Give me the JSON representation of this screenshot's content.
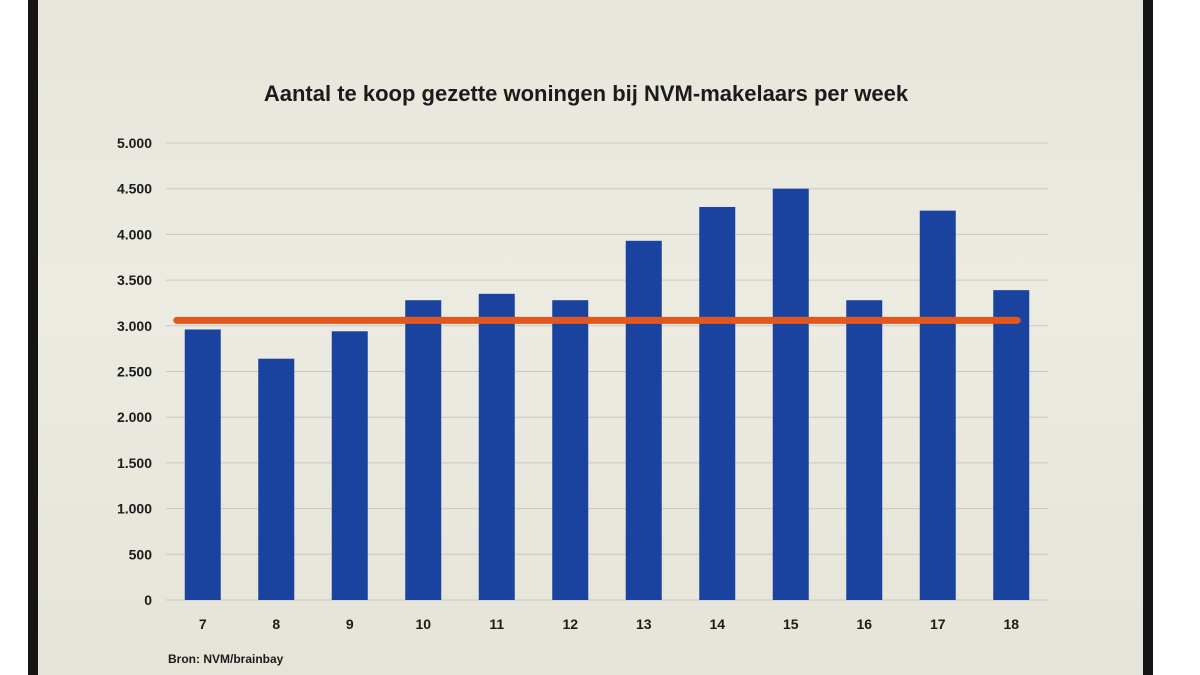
{
  "chart_data": {
    "type": "bar",
    "title": "Aantal te koop gezette woningen bij NVM-makelaars per week",
    "xlabel": "",
    "ylabel": "",
    "categories": [
      "7",
      "8",
      "9",
      "10",
      "11",
      "12",
      "13",
      "14",
      "15",
      "16",
      "17",
      "18"
    ],
    "series": [
      {
        "values": [
          2960,
          2640,
          2940,
          3280,
          3350,
          3280,
          3930,
          4300,
          4500,
          3280,
          4260,
          3390
        ],
        "color": "#1a43a0"
      }
    ],
    "reference_line": {
      "value": 3060,
      "color": "#e2571e"
    },
    "ylim": [
      0,
      5000
    ],
    "yticks": [
      0,
      500,
      1000,
      1500,
      2000,
      2500,
      3000,
      3500,
      4000,
      4500,
      5000
    ],
    "ytick_labels": [
      "0",
      "500",
      "1.000",
      "1.500",
      "2.000",
      "2.500",
      "3.000",
      "3.500",
      "4.000",
      "4.500",
      "5.000"
    ],
    "grid": true,
    "legend": "none",
    "source": "Bron: NVM/brainbay"
  }
}
